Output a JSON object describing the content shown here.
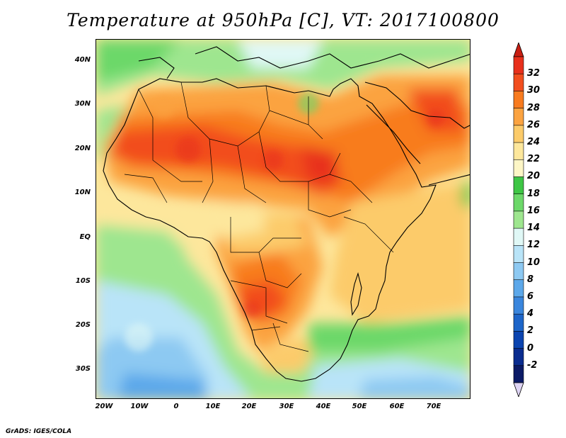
{
  "title": "Temperature at 950hPa [C], VT: 2017100800",
  "credit": "GrADS: IGES/COLA",
  "lat_labels": [
    "40N",
    "30N",
    "20N",
    "10N",
    "EQ",
    "10S",
    "20S",
    "30S"
  ],
  "lon_labels": [
    "20W",
    "10W",
    "0",
    "10E",
    "20E",
    "30E",
    "40E",
    "50E",
    "60E",
    "70E"
  ],
  "colorbar": {
    "labels": [
      "32",
      "30",
      "28",
      "26",
      "24",
      "22",
      "20",
      "18",
      "16",
      "14",
      "12",
      "10",
      "8",
      "6",
      "4",
      "2",
      "0",
      "-2"
    ],
    "colors": [
      "#e8301c",
      "#f24e1e",
      "#f87b1f",
      "#fba341",
      "#fccb6a",
      "#fde79c",
      "#fdf6c6",
      "#3ec645",
      "#6cd869",
      "#9ee68f",
      "#e0f8f6",
      "#b9e4f8",
      "#8dc9f2",
      "#5ca8ea",
      "#3a86dd",
      "#1d65c9",
      "#0b44b0",
      "#0a2c8f",
      "#0b1a66"
    ],
    "top_color": "#c81e12",
    "bottom_color": "#ded4f4"
  }
}
